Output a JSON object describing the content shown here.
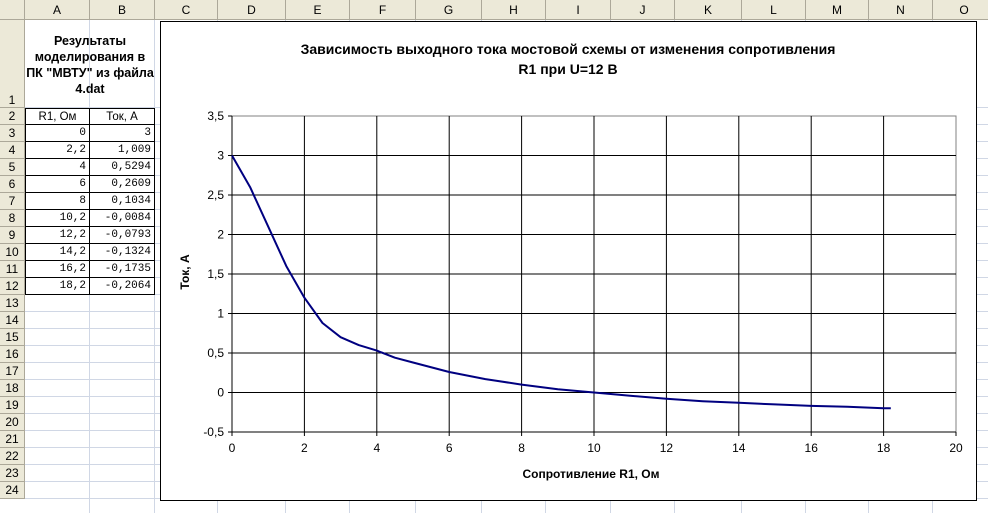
{
  "columns": [
    "A",
    "B",
    "C",
    "D",
    "E",
    "F",
    "G",
    "H",
    "I",
    "J",
    "K",
    "L",
    "M",
    "N",
    "O"
  ],
  "rows": [
    "1",
    "2",
    "3",
    "4",
    "5",
    "6",
    "7",
    "8",
    "9",
    "10",
    "11",
    "12",
    "13",
    "14",
    "15",
    "16",
    "17",
    "18",
    "19",
    "20",
    "21",
    "22",
    "23",
    "24"
  ],
  "sheet": {
    "title": "Результаты моделирования в ПК \"МВТУ\" из файла 4.dat",
    "header": [
      "R1, Ом",
      "Ток, А"
    ],
    "table": [
      [
        "0",
        "3"
      ],
      [
        "2,2",
        "1,009"
      ],
      [
        "4",
        "0,5294"
      ],
      [
        "6",
        "0,2609"
      ],
      [
        "8",
        "0,1034"
      ],
      [
        "10,2",
        "-0,0084"
      ],
      [
        "12,2",
        "-0,0793"
      ],
      [
        "14,2",
        "-0,1324"
      ],
      [
        "16,2",
        "-0,1735"
      ],
      [
        "18,2",
        "-0,2064"
      ]
    ]
  },
  "chart_data": {
    "type": "line",
    "title": "Зависимость выходного тока мостовой схемы от изменения сопротивления R1 при U=12 В",
    "title_lines": [
      "Зависимость выходного тока мостовой схемы от изменения сопротивления",
      "R1 при U=12 В"
    ],
    "xlabel": "Сопротивление R1, Ом",
    "ylabel": "Ток, А",
    "xlim": [
      0,
      20
    ],
    "ylim": [
      -0.5,
      3.5
    ],
    "xticks": [
      "0",
      "2",
      "4",
      "6",
      "8",
      "10",
      "12",
      "14",
      "16",
      "18",
      "20"
    ],
    "yticks": [
      "3,5",
      "3",
      "2,5",
      "2",
      "1,5",
      "1",
      "0,5",
      "0",
      "-0,5"
    ],
    "grid": true,
    "legend": "none",
    "line_color": "#000080",
    "series": [
      {
        "x": [
          0,
          0.5,
          1,
          1.5,
          2,
          2.5,
          3,
          3.5,
          4,
          4.5,
          5,
          6,
          7,
          8,
          9,
          10,
          11,
          12,
          13,
          14,
          15,
          16,
          17,
          18,
          18.2
        ],
        "y": [
          3.0,
          2.6,
          2.1,
          1.6,
          1.2,
          0.88,
          0.7,
          0.6,
          0.53,
          0.44,
          0.38,
          0.26,
          0.17,
          0.1,
          0.04,
          0.0,
          -0.04,
          -0.08,
          -0.11,
          -0.13,
          -0.15,
          -0.17,
          -0.18,
          -0.2,
          -0.2
        ]
      }
    ]
  }
}
